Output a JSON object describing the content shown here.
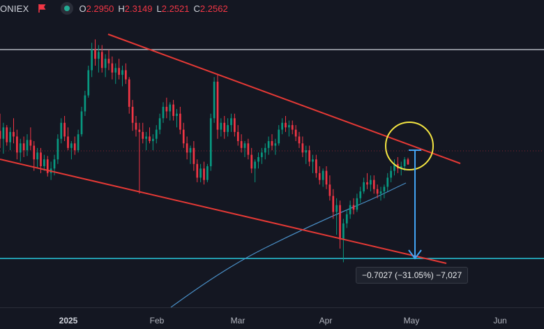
{
  "header": {
    "symbol": "ONIEX",
    "ohlc": [
      {
        "key": "O",
        "value": "2.2950"
      },
      {
        "key": "H",
        "value": "2.3149"
      },
      {
        "key": "L",
        "value": "2.2521"
      },
      {
        "key": "C",
        "value": "2.2562"
      }
    ]
  },
  "measure_label": "−0.7027 (−31.05%) −7,027",
  "chart_data": {
    "type": "candlestick",
    "x_ticks": [
      "2025",
      "Feb",
      "Mar",
      "Apr",
      "May",
      "Jun"
    ],
    "up_color": "#089981",
    "down_color": "#f23645",
    "ohlc": [
      [
        2.55,
        2.7,
        2.4,
        2.48
      ],
      [
        2.48,
        2.62,
        2.35,
        2.58
      ],
      [
        2.58,
        2.6,
        2.42,
        2.45
      ],
      [
        2.45,
        2.58,
        2.38,
        2.54
      ],
      [
        2.54,
        2.66,
        2.44,
        2.5
      ],
      [
        2.5,
        2.56,
        2.3,
        2.36
      ],
      [
        2.36,
        2.48,
        2.28,
        2.44
      ],
      [
        2.44,
        2.5,
        2.32,
        2.38
      ],
      [
        2.38,
        2.52,
        2.33,
        2.47
      ],
      [
        2.47,
        2.58,
        2.38,
        2.42
      ],
      [
        2.42,
        2.46,
        2.2,
        2.3
      ],
      [
        2.3,
        2.4,
        2.22,
        2.36
      ],
      [
        2.36,
        2.4,
        2.18,
        2.24
      ],
      [
        2.24,
        2.34,
        2.2,
        2.3
      ],
      [
        2.3,
        2.33,
        2.15,
        2.18
      ],
      [
        2.18,
        2.28,
        2.12,
        2.22
      ],
      [
        2.22,
        2.34,
        2.16,
        2.3
      ],
      [
        2.3,
        2.52,
        2.26,
        2.48
      ],
      [
        2.48,
        2.66,
        2.44,
        2.62
      ],
      [
        2.62,
        2.68,
        2.46,
        2.5
      ],
      [
        2.5,
        2.58,
        2.38,
        2.4
      ],
      [
        2.4,
        2.46,
        2.3,
        2.44
      ],
      [
        2.44,
        2.5,
        2.34,
        2.38
      ],
      [
        2.38,
        2.56,
        2.36,
        2.52
      ],
      [
        2.52,
        2.76,
        2.5,
        2.72
      ],
      [
        2.72,
        2.9,
        2.68,
        2.86
      ],
      [
        2.86,
        3.12,
        2.84,
        3.08
      ],
      [
        3.08,
        3.32,
        3.02,
        3.26
      ],
      [
        3.26,
        3.35,
        3.12,
        3.18
      ],
      [
        3.18,
        3.3,
        3.06,
        3.24
      ],
      [
        3.24,
        3.3,
        3.06,
        3.1
      ],
      [
        3.1,
        3.22,
        3.02,
        3.18
      ],
      [
        3.18,
        3.26,
        3.08,
        3.14
      ],
      [
        3.14,
        3.2,
        3.0,
        3.06
      ],
      [
        3.06,
        3.14,
        2.96,
        3.1
      ],
      [
        3.1,
        3.18,
        3.0,
        3.04
      ],
      [
        3.04,
        3.12,
        2.94,
        3.08
      ],
      [
        3.08,
        3.14,
        2.96,
        3.0
      ],
      [
        3.0,
        3.02,
        2.7,
        2.76
      ],
      [
        2.76,
        2.82,
        2.55,
        2.62
      ],
      [
        2.62,
        2.68,
        2.5,
        2.56
      ],
      [
        2.56,
        2.62,
        2.0,
        2.54
      ],
      [
        2.54,
        2.62,
        2.44,
        2.48
      ],
      [
        2.48,
        2.54,
        2.38,
        2.5
      ],
      [
        2.5,
        2.58,
        2.44,
        2.46
      ],
      [
        2.46,
        2.52,
        2.38,
        2.48
      ],
      [
        2.48,
        2.6,
        2.44,
        2.56
      ],
      [
        2.56,
        2.7,
        2.52,
        2.66
      ],
      [
        2.66,
        2.8,
        2.62,
        2.76
      ],
      [
        2.76,
        2.84,
        2.66,
        2.72
      ],
      [
        2.72,
        2.8,
        2.64,
        2.78
      ],
      [
        2.78,
        2.82,
        2.64,
        2.68
      ],
      [
        2.68,
        2.74,
        2.58,
        2.7
      ],
      [
        2.7,
        2.76,
        2.52,
        2.56
      ],
      [
        2.56,
        2.62,
        2.4,
        2.44
      ],
      [
        2.44,
        2.5,
        2.3,
        2.36
      ],
      [
        2.36,
        2.42,
        2.26,
        2.4
      ],
      [
        2.4,
        2.46,
        2.2,
        2.26
      ],
      [
        2.26,
        2.3,
        2.1,
        2.14
      ],
      [
        2.14,
        2.26,
        2.1,
        2.22
      ],
      [
        2.22,
        2.28,
        2.08,
        2.12
      ],
      [
        2.12,
        2.26,
        2.1,
        2.24
      ],
      [
        2.24,
        2.7,
        2.2,
        2.66
      ],
      [
        2.66,
        3.02,
        2.62,
        2.98
      ],
      [
        2.98,
        3.04,
        2.48,
        2.56
      ],
      [
        2.56,
        2.66,
        2.5,
        2.62
      ],
      [
        2.62,
        2.68,
        2.48,
        2.54
      ],
      [
        2.54,
        2.66,
        2.5,
        2.6
      ],
      [
        2.6,
        2.7,
        2.54,
        2.66
      ],
      [
        2.66,
        2.7,
        2.5,
        2.54
      ],
      [
        2.54,
        2.6,
        2.42,
        2.46
      ],
      [
        2.46,
        2.52,
        2.36,
        2.4
      ],
      [
        2.4,
        2.46,
        2.32,
        2.44
      ],
      [
        2.44,
        2.48,
        2.3,
        2.34
      ],
      [
        2.34,
        2.4,
        2.18,
        2.22
      ],
      [
        2.22,
        2.3,
        2.1,
        2.28
      ],
      [
        2.28,
        2.36,
        2.22,
        2.32
      ],
      [
        2.32,
        2.4,
        2.26,
        2.36
      ],
      [
        2.36,
        2.44,
        2.3,
        2.4
      ],
      [
        2.4,
        2.5,
        2.34,
        2.46
      ],
      [
        2.46,
        2.52,
        2.38,
        2.42
      ],
      [
        2.42,
        2.48,
        2.34,
        2.44
      ],
      [
        2.44,
        2.6,
        2.42,
        2.56
      ],
      [
        2.56,
        2.66,
        2.52,
        2.62
      ],
      [
        2.62,
        2.68,
        2.54,
        2.58
      ],
      [
        2.58,
        2.64,
        2.5,
        2.6
      ],
      [
        2.6,
        2.64,
        2.52,
        2.56
      ],
      [
        2.56,
        2.6,
        2.46,
        2.5
      ],
      [
        2.5,
        2.54,
        2.4,
        2.44
      ],
      [
        2.44,
        2.5,
        2.32,
        2.36
      ],
      [
        2.36,
        2.42,
        2.26,
        2.38
      ],
      [
        2.38,
        2.42,
        2.24,
        2.28
      ],
      [
        2.28,
        2.34,
        2.18,
        2.3
      ],
      [
        2.3,
        2.34,
        2.14,
        2.18
      ],
      [
        2.18,
        2.24,
        2.08,
        2.12
      ],
      [
        2.12,
        2.22,
        2.06,
        2.2
      ],
      [
        2.2,
        2.24,
        2.04,
        2.08
      ],
      [
        2.08,
        2.16,
        1.94,
        1.98
      ],
      [
        1.98,
        2.04,
        1.78,
        1.84
      ],
      [
        1.84,
        1.96,
        1.64,
        1.9
      ],
      [
        1.9,
        1.94,
        1.52,
        1.6
      ],
      [
        1.6,
        1.78,
        1.4,
        1.74
      ],
      [
        1.74,
        1.86,
        1.7,
        1.82
      ],
      [
        1.82,
        1.94,
        1.78,
        1.9
      ],
      [
        1.9,
        1.96,
        1.82,
        1.86
      ],
      [
        1.86,
        2.0,
        1.84,
        1.96
      ],
      [
        1.96,
        2.06,
        1.92,
        2.02
      ],
      [
        2.02,
        2.14,
        2.0,
        2.1
      ],
      [
        2.1,
        2.18,
        2.04,
        2.08
      ],
      [
        2.08,
        2.16,
        2.02,
        2.12
      ],
      [
        2.12,
        2.16,
        2.0,
        2.04
      ],
      [
        2.04,
        2.08,
        1.96,
        2.0
      ],
      [
        2.0,
        2.06,
        1.94,
        2.02
      ],
      [
        2.02,
        2.08,
        1.96,
        2.06
      ],
      [
        2.06,
        2.18,
        2.02,
        2.14
      ],
      [
        2.14,
        2.24,
        2.1,
        2.2
      ],
      [
        2.2,
        2.3,
        2.16,
        2.26
      ],
      [
        2.26,
        2.32,
        2.18,
        2.22
      ],
      [
        2.22,
        2.28,
        2.16,
        2.24
      ],
      [
        2.24,
        2.32,
        2.2,
        2.3
      ],
      [
        2.3,
        2.3149,
        2.2521,
        2.2562
      ]
    ]
  },
  "lines": {
    "upper_trend_color": "#e53935",
    "lower_trend_color": "#e53935",
    "resistance_color": "#b2b5be",
    "support_color": "#26c6da",
    "ma_color": "#4a90c8",
    "circle_color": "#f5e642",
    "measure_color": "#42a5f5"
  }
}
